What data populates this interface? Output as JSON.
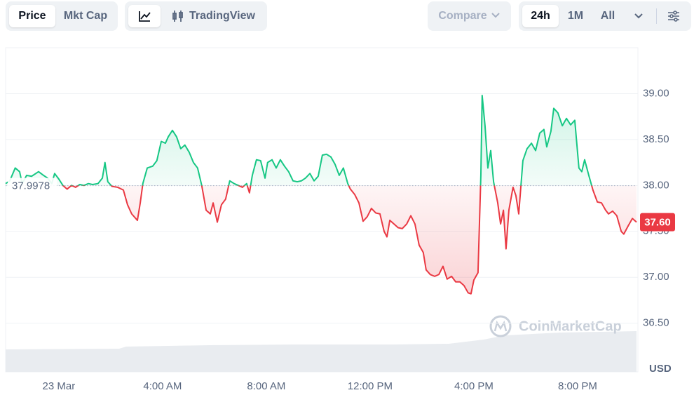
{
  "toolbar": {
    "price": "Price",
    "mkt_cap": "Mkt Cap",
    "tradingview": "TradingView",
    "compare": "Compare",
    "ranges": [
      "24h",
      "1M",
      "All"
    ]
  },
  "chart_data": {
    "type": "line",
    "y_label": "USD",
    "watermark": "CoinMarketCap",
    "baseline": 37.9978,
    "current_price": {
      "value": 37.6,
      "label": "37.60"
    },
    "up_color": "#16c784",
    "down_color": "#ea3943",
    "xlim": [
      -2.05,
      22.27
    ],
    "ylim": [
      35.97,
      39.5
    ],
    "xticks": [
      {
        "value": 0,
        "label": "23 Mar"
      },
      {
        "value": 4,
        "label": "4:00 AM"
      },
      {
        "value": 8,
        "label": "8:00 AM"
      },
      {
        "value": 12,
        "label": "12:00 PM"
      },
      {
        "value": 16,
        "label": "4:00 PM"
      },
      {
        "value": 20,
        "label": "8:00 PM"
      }
    ],
    "yticks": [
      {
        "value": 36.5,
        "label": "36.50"
      },
      {
        "value": 37,
        "label": "37.00"
      },
      {
        "value": 37.5,
        "label": "37.50"
      },
      {
        "value": 38,
        "label": "38.00"
      },
      {
        "value": 38.5,
        "label": "38.50"
      },
      {
        "value": 39,
        "label": "39.00"
      }
    ],
    "grid": true,
    "series": [
      {
        "name": "Price",
        "x": [
          -2.05,
          -1.89,
          -1.68,
          -1.51,
          -1.41,
          -1.24,
          -1.05,
          -0.78,
          -0.59,
          -0.43,
          -0.27,
          -0.16,
          0,
          0.16,
          0.32,
          0.49,
          0.65,
          0.81,
          0.97,
          1.14,
          1.3,
          1.51,
          1.68,
          1.78,
          1.89,
          2.05,
          2.27,
          2.49,
          2.65,
          2.81,
          3.03,
          3.14,
          3.24,
          3.41,
          3.62,
          3.78,
          3.95,
          4.11,
          4.22,
          4.38,
          4.54,
          4.7,
          4.86,
          5.03,
          5.19,
          5.35,
          5.51,
          5.68,
          5.84,
          5.95,
          6.11,
          6.27,
          6.43,
          6.59,
          6.76,
          6.92,
          7.08,
          7.24,
          7.35,
          7.46,
          7.62,
          7.78,
          7.95,
          8.05,
          8.22,
          8.38,
          8.54,
          8.7,
          8.86,
          9.03,
          9.19,
          9.35,
          9.51,
          9.68,
          9.84,
          10.0,
          10.16,
          10.32,
          10.49,
          10.65,
          10.81,
          10.97,
          11.14,
          11.24,
          11.41,
          11.57,
          11.73,
          11.89,
          12.05,
          12.22,
          12.38,
          12.54,
          12.65,
          12.76,
          12.92,
          13.08,
          13.24,
          13.41,
          13.57,
          13.73,
          13.89,
          14.05,
          14.16,
          14.32,
          14.49,
          14.65,
          14.81,
          14.97,
          15.14,
          15.3,
          15.46,
          15.62,
          15.78,
          15.89,
          16.0,
          16.16,
          16.27,
          16.32,
          16.43,
          16.54,
          16.65,
          16.76,
          16.92,
          17.03,
          17.14,
          17.24,
          17.35,
          17.51,
          17.62,
          17.73,
          17.89,
          18.05,
          18.22,
          18.38,
          18.54,
          18.7,
          18.81,
          18.97,
          19.08,
          19.24,
          19.41,
          19.57,
          19.73,
          19.89,
          20.05,
          20.16,
          20.27,
          20.43,
          20.59,
          20.76,
          20.92,
          21.08,
          21.19,
          21.35,
          21.51,
          21.68,
          21.78,
          21.95,
          22.11,
          22.27
        ],
        "values": [
          38.02,
          38.05,
          38.19,
          38.15,
          38.02,
          38.11,
          38.1,
          38.15,
          38.11,
          38.08,
          38.02,
          38.13,
          38.07,
          38.0,
          37.96,
          38.0,
          37.98,
          38.01,
          38.0,
          38.02,
          38.01,
          38.02,
          38.08,
          38.25,
          38.04,
          37.99,
          37.98,
          37.95,
          37.79,
          37.69,
          37.62,
          37.81,
          38.02,
          38.19,
          38.21,
          38.27,
          38.48,
          38.46,
          38.53,
          38.6,
          38.53,
          38.4,
          38.44,
          38.36,
          38.25,
          38.19,
          38.0,
          37.73,
          37.69,
          37.81,
          37.6,
          37.79,
          37.85,
          38.05,
          38.02,
          38.0,
          37.98,
          38.02,
          37.92,
          38.11,
          38.28,
          38.27,
          38.08,
          38.25,
          38.28,
          38.19,
          38.28,
          38.21,
          38.15,
          38.05,
          38.04,
          38.05,
          38.08,
          38.13,
          38.05,
          38.1,
          38.33,
          38.34,
          38.31,
          38.23,
          38.11,
          38.19,
          38.02,
          37.96,
          37.9,
          37.81,
          37.61,
          37.66,
          37.75,
          37.7,
          37.69,
          37.5,
          37.44,
          37.62,
          37.58,
          37.54,
          37.53,
          37.58,
          37.67,
          37.58,
          37.35,
          37.27,
          37.08,
          37.03,
          37.01,
          37.03,
          37.12,
          36.98,
          37.01,
          36.95,
          36.95,
          36.91,
          36.83,
          36.82,
          36.97,
          37.05,
          38.11,
          38.98,
          38.65,
          38.19,
          38.38,
          38.04,
          37.81,
          37.58,
          37.73,
          37.31,
          37.73,
          37.98,
          37.89,
          37.69,
          38.27,
          38.4,
          38.46,
          38.38,
          38.57,
          38.61,
          38.42,
          38.59,
          38.84,
          38.79,
          38.65,
          38.73,
          38.66,
          38.71,
          38.19,
          38.15,
          38.28,
          38.11,
          37.95,
          37.82,
          37.81,
          37.73,
          37.69,
          37.72,
          37.67,
          37.5,
          37.47,
          37.56,
          37.64,
          37.6
        ]
      }
    ]
  }
}
